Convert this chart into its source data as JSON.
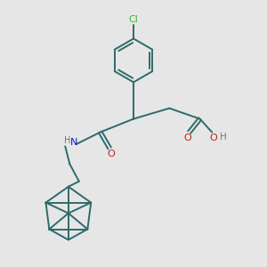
{
  "bg_color": "#e6e6e6",
  "bond_color": "#2d6b6b",
  "cl_color": "#3cb83c",
  "n_color": "#1a1acc",
  "o_color": "#cc1a1a",
  "h_color": "#777777",
  "line_width": 1.4,
  "figsize": [
    3.0,
    3.0
  ],
  "dpi": 100,
  "xlim": [
    0,
    10
  ],
  "ylim": [
    0,
    10
  ]
}
